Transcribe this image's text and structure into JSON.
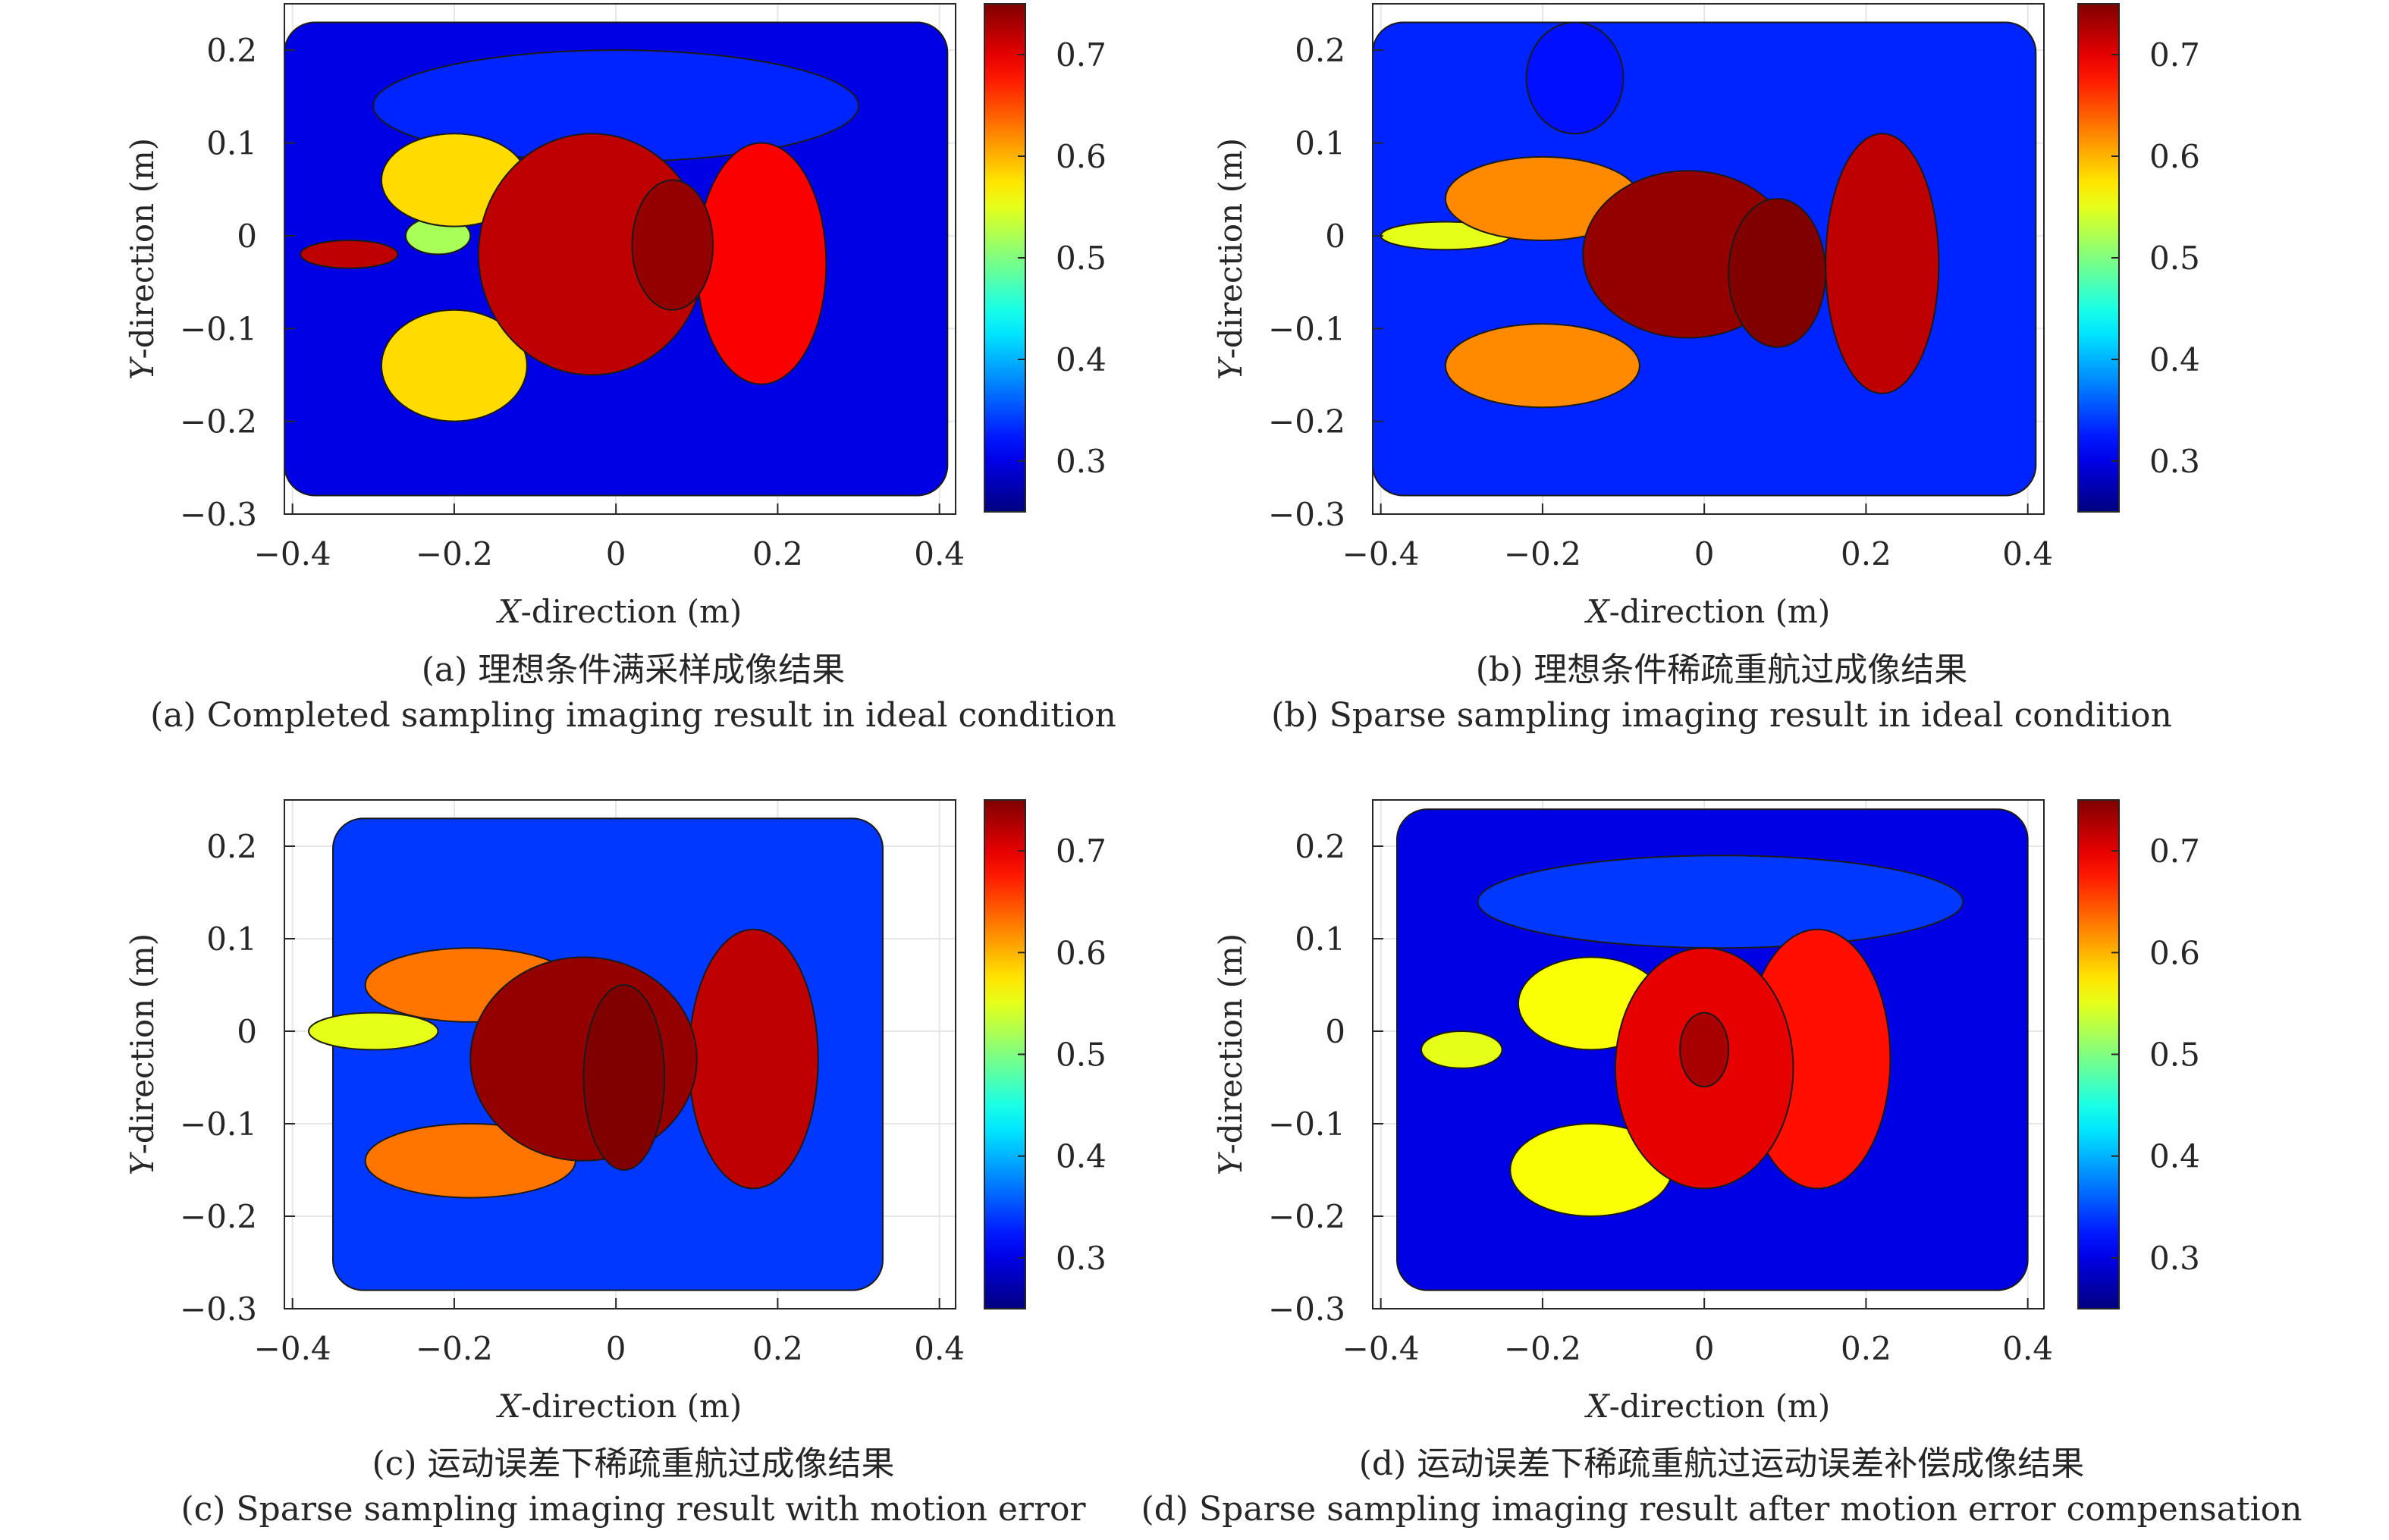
{
  "figure": {
    "panels": [
      {
        "id": "a",
        "caption_cn": "(a) 理想条件满采样成像结果",
        "caption_en": "(a) Completed sampling imaging result in ideal condition"
      },
      {
        "id": "b",
        "caption_cn": "(b) 理想条件稀疏重航过成像结果",
        "caption_en": "(b) Sparse sampling imaging result in ideal condition"
      },
      {
        "id": "c",
        "caption_cn": "(c) 运动误差下稀疏重航过成像结果",
        "caption_en": "(c) Sparse sampling imaging result with motion error"
      },
      {
        "id": "d",
        "caption_cn": "(d) 运动误差下稀疏重航过运动误差补偿成像结果",
        "caption_en": "(d) Sparse sampling imaging result after motion error compensation"
      }
    ]
  },
  "chart_data": [
    {
      "type": "heatmap",
      "panel": "a",
      "xlabel": "X-direction (m)",
      "ylabel": "Y-direction (m)",
      "xlim": [
        -0.41,
        0.42
      ],
      "ylim": [
        -0.3,
        0.25
      ],
      "xticks": [
        -0.4,
        -0.2,
        0,
        0.2,
        0.4
      ],
      "xtick_labels": [
        "−0.4",
        "−0.2",
        "0",
        "0.2",
        "0.4"
      ],
      "yticks": [
        0.2,
        0.1,
        0,
        -0.1,
        -0.2,
        -0.3
      ],
      "ytick_labels": [
        "0.2",
        "0.1",
        "0",
        "−0.1",
        "−0.2",
        "−0.3"
      ],
      "colorbar": {
        "range": [
          0.25,
          0.75
        ],
        "ticks": [
          0.7,
          0.6,
          0.5,
          0.4,
          0.3
        ],
        "tick_labels": [
          "0.7",
          "0.6",
          "0.5",
          "0.4",
          "0.3"
        ],
        "colormap": "jet"
      },
      "regions": [
        {
          "level": 0.3,
          "shape": "background",
          "x": [
            -0.41,
            0.41
          ],
          "y": [
            -0.28,
            0.23
          ]
        },
        {
          "level": 0.33,
          "shape": "ellipse",
          "cx": 0.0,
          "cy": 0.14,
          "rx": 0.3,
          "ry": 0.06
        },
        {
          "level": 0.52,
          "shape": "ellipse",
          "cx": -0.22,
          "cy": 0.0,
          "rx": 0.04,
          "ry": 0.02
        },
        {
          "level": 0.58,
          "shape": "ellipse",
          "cx": -0.2,
          "cy": 0.06,
          "rx": 0.09,
          "ry": 0.05
        },
        {
          "level": 0.58,
          "shape": "ellipse",
          "cx": -0.2,
          "cy": -0.14,
          "rx": 0.09,
          "ry": 0.06
        },
        {
          "level": 0.72,
          "shape": "ellipse",
          "cx": -0.33,
          "cy": -0.02,
          "rx": 0.06,
          "ry": 0.015
        },
        {
          "level": 0.69,
          "shape": "ellipse",
          "cx": 0.18,
          "cy": -0.03,
          "rx": 0.08,
          "ry": 0.13
        },
        {
          "level": 0.72,
          "shape": "ellipse",
          "cx": -0.03,
          "cy": -0.02,
          "rx": 0.14,
          "ry": 0.13
        },
        {
          "level": 0.74,
          "shape": "ellipse",
          "cx": 0.07,
          "cy": -0.01,
          "rx": 0.05,
          "ry": 0.07
        }
      ]
    },
    {
      "type": "heatmap",
      "panel": "b",
      "xlabel": "X-direction (m)",
      "ylabel": "Y-direction (m)",
      "xlim": [
        -0.41,
        0.42
      ],
      "ylim": [
        -0.3,
        0.25
      ],
      "xticks": [
        -0.4,
        -0.2,
        0,
        0.2,
        0.4
      ],
      "xtick_labels": [
        "−0.4",
        "−0.2",
        "0",
        "0.2",
        "0.4"
      ],
      "yticks": [
        0.2,
        0.1,
        0,
        -0.1,
        -0.2,
        -0.3
      ],
      "ytick_labels": [
        "0.2",
        "0.1",
        "0",
        "−0.1",
        "−0.2",
        "−0.3"
      ],
      "colorbar": {
        "range": [
          0.25,
          0.75
        ],
        "ticks": [
          0.7,
          0.6,
          0.5,
          0.4,
          0.3
        ],
        "tick_labels": [
          "0.7",
          "0.6",
          "0.5",
          "0.4",
          "0.3"
        ],
        "colormap": "jet"
      },
      "regions": [
        {
          "level": 0.33,
          "shape": "background",
          "x": [
            -0.41,
            0.41
          ],
          "y": [
            -0.28,
            0.23
          ]
        },
        {
          "level": 0.32,
          "shape": "ellipse",
          "cx": -0.16,
          "cy": 0.17,
          "rx": 0.06,
          "ry": 0.06
        },
        {
          "level": 0.55,
          "shape": "ellipse",
          "cx": -0.32,
          "cy": 0.0,
          "rx": 0.08,
          "ry": 0.015
        },
        {
          "level": 0.62,
          "shape": "ellipse",
          "cx": -0.2,
          "cy": 0.04,
          "rx": 0.12,
          "ry": 0.045
        },
        {
          "level": 0.62,
          "shape": "ellipse",
          "cx": -0.2,
          "cy": -0.14,
          "rx": 0.12,
          "ry": 0.045
        },
        {
          "level": 0.72,
          "shape": "ellipse",
          "cx": 0.22,
          "cy": -0.03,
          "rx": 0.07,
          "ry": 0.14
        },
        {
          "level": 0.74,
          "shape": "ellipse",
          "cx": -0.02,
          "cy": -0.02,
          "rx": 0.13,
          "ry": 0.09
        },
        {
          "level": 0.75,
          "shape": "ellipse",
          "cx": 0.09,
          "cy": -0.04,
          "rx": 0.06,
          "ry": 0.08
        }
      ]
    },
    {
      "type": "heatmap",
      "panel": "c",
      "xlabel": "X-direction (m)",
      "ylabel": "Y-direction (m)",
      "xlim": [
        -0.41,
        0.42
      ],
      "ylim": [
        -0.3,
        0.25
      ],
      "xticks": [
        -0.4,
        -0.2,
        0,
        0.2,
        0.4
      ],
      "xtick_labels": [
        "−0.4",
        "−0.2",
        "0",
        "0.2",
        "0.4"
      ],
      "yticks": [
        0.2,
        0.1,
        0,
        -0.1,
        -0.2,
        -0.3
      ],
      "ytick_labels": [
        "0.2",
        "0.1",
        "0",
        "−0.1",
        "−0.2",
        "−0.3"
      ],
      "colorbar": {
        "range": [
          0.25,
          0.75
        ],
        "ticks": [
          0.7,
          0.6,
          0.5,
          0.4,
          0.3
        ],
        "tick_labels": [
          "0.7",
          "0.6",
          "0.5",
          "0.4",
          "0.3"
        ],
        "colormap": "jet"
      },
      "regions": [
        {
          "level": 0.34,
          "shape": "background",
          "x": [
            -0.35,
            0.33
          ],
          "y": [
            -0.28,
            0.23
          ]
        },
        {
          "level": 0.55,
          "shape": "ellipse",
          "cx": -0.3,
          "cy": 0.0,
          "rx": 0.08,
          "ry": 0.02
        },
        {
          "level": 0.63,
          "shape": "ellipse",
          "cx": -0.18,
          "cy": 0.05,
          "rx": 0.13,
          "ry": 0.04
        },
        {
          "level": 0.63,
          "shape": "ellipse",
          "cx": -0.18,
          "cy": -0.14,
          "rx": 0.13,
          "ry": 0.04
        },
        {
          "level": 0.72,
          "shape": "ellipse",
          "cx": 0.17,
          "cy": -0.03,
          "rx": 0.08,
          "ry": 0.14
        },
        {
          "level": 0.74,
          "shape": "ellipse",
          "cx": -0.04,
          "cy": -0.03,
          "rx": 0.14,
          "ry": 0.11
        },
        {
          "level": 0.75,
          "shape": "ellipse",
          "cx": 0.01,
          "cy": -0.05,
          "rx": 0.05,
          "ry": 0.1
        }
      ]
    },
    {
      "type": "heatmap",
      "panel": "d",
      "xlabel": "X-direction (m)",
      "ylabel": "Y-direction (m)",
      "xlim": [
        -0.41,
        0.42
      ],
      "ylim": [
        -0.3,
        0.25
      ],
      "xticks": [
        -0.4,
        -0.2,
        0,
        0.2,
        0.4
      ],
      "xtick_labels": [
        "−0.4",
        "−0.2",
        "0",
        "0.2",
        "0.4"
      ],
      "yticks": [
        0.2,
        0.1,
        0,
        -0.1,
        -0.2,
        -0.3
      ],
      "ytick_labels": [
        "0.2",
        "0.1",
        "0",
        "−0.1",
        "−0.2",
        "−0.3"
      ],
      "colorbar": {
        "range": [
          0.25,
          0.75
        ],
        "ticks": [
          0.7,
          0.6,
          0.5,
          0.4,
          0.3
        ],
        "tick_labels": [
          "0.7",
          "0.6",
          "0.5",
          "0.4",
          "0.3"
        ],
        "colormap": "jet"
      },
      "regions": [
        {
          "level": 0.3,
          "shape": "background",
          "x": [
            -0.38,
            0.4
          ],
          "y": [
            -0.28,
            0.24
          ]
        },
        {
          "level": 0.34,
          "shape": "ellipse",
          "cx": 0.02,
          "cy": 0.14,
          "rx": 0.3,
          "ry": 0.05
        },
        {
          "level": 0.55,
          "shape": "ellipse",
          "cx": -0.3,
          "cy": -0.02,
          "rx": 0.05,
          "ry": 0.02
        },
        {
          "level": 0.56,
          "shape": "ellipse",
          "cx": -0.14,
          "cy": 0.03,
          "rx": 0.09,
          "ry": 0.05
        },
        {
          "level": 0.56,
          "shape": "ellipse",
          "cx": -0.14,
          "cy": -0.15,
          "rx": 0.1,
          "ry": 0.05
        },
        {
          "level": 0.68,
          "shape": "ellipse",
          "cx": 0.14,
          "cy": -0.03,
          "rx": 0.09,
          "ry": 0.14
        },
        {
          "level": 0.7,
          "shape": "ellipse",
          "cx": 0.0,
          "cy": -0.04,
          "rx": 0.11,
          "ry": 0.13
        },
        {
          "level": 0.73,
          "shape": "ellipse",
          "cx": 0.0,
          "cy": -0.02,
          "rx": 0.03,
          "ry": 0.04
        }
      ]
    }
  ]
}
